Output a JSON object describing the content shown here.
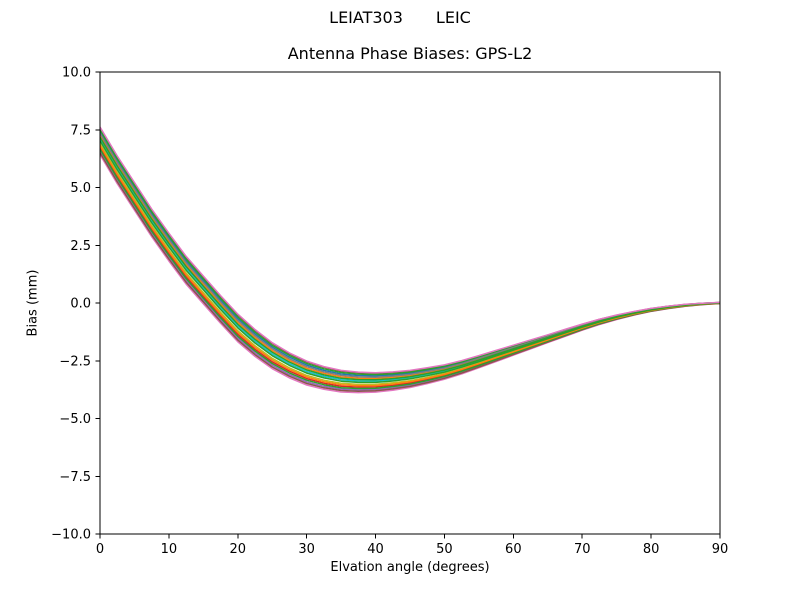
{
  "figure": {
    "suptitle": {
      "antenna": "LEIAT303",
      "station": "LEIC"
    },
    "axes_title": "Antenna Phase Biases: GPS-L2"
  },
  "axes": {
    "xlabel": "Elvation angle (degrees)",
    "ylabel": "Bias (mm)",
    "xlim": [
      0,
      90
    ],
    "ylim": [
      -10,
      10
    ],
    "x_ticks": {
      "values": [
        0,
        10,
        20,
        30,
        40,
        50,
        60,
        70,
        80,
        90
      ],
      "labels": [
        "0",
        "10",
        "20",
        "30",
        "40",
        "50",
        "60",
        "70",
        "80",
        "90"
      ]
    },
    "y_ticks": {
      "values": [
        10,
        7.5,
        5,
        2.5,
        0,
        -2.5,
        -5,
        -7.5,
        -10
      ],
      "labels": [
        "10.0",
        "7.5",
        "5.0",
        "2.5",
        "0.0",
        "−2.5",
        "−5.0",
        "−7.5",
        "−10.0"
      ]
    },
    "spine_color": "#000000",
    "background": "#ffffff"
  },
  "chart_data": {
    "type": "line",
    "title": "Antenna Phase Biases: GPS-L2",
    "suptitle": "LEIAT303        LEIC",
    "xlabel": "Elvation angle (degrees)",
    "ylabel": "Bias (mm)",
    "xlim": [
      0,
      90
    ],
    "ylim": [
      -10,
      10
    ],
    "grid": false,
    "legend": "none",
    "description": "Bundle of closely spaced phase-bias curves (one per satellite), start ~6.4-7.6 mm at 0 deg, cross zero near 17 deg, minimum ~-3.0 to -3.9 mm near 35-40 deg, converge to 0.0 mm at 90 deg",
    "x": [
      0,
      2.5,
      5,
      7.5,
      10,
      12.5,
      15,
      17.5,
      20,
      22.5,
      25,
      27.5,
      30,
      32.5,
      35,
      37.5,
      40,
      42.5,
      45,
      47.5,
      50,
      52.5,
      55,
      57.5,
      60,
      62.5,
      65,
      67.5,
      70,
      72.5,
      75,
      77.5,
      80,
      82.5,
      85,
      87.5,
      90
    ],
    "band_center": [
      7.0,
      5.75,
      4.6,
      3.45,
      2.4,
      1.4,
      0.55,
      -0.3,
      -1.1,
      -1.75,
      -2.3,
      -2.72,
      -3.05,
      -3.26,
      -3.4,
      -3.45,
      -3.45,
      -3.39,
      -3.3,
      -3.16,
      -3.0,
      -2.79,
      -2.55,
      -2.3,
      -2.05,
      -1.8,
      -1.55,
      -1.3,
      -1.05,
      -0.82,
      -0.62,
      -0.45,
      -0.3,
      -0.19,
      -0.1,
      -0.04,
      0.0
    ],
    "band_spread_weight": [
      1,
      1,
      1,
      1,
      1,
      1,
      1,
      1,
      1,
      0.97,
      0.94,
      0.9,
      0.86,
      0.82,
      0.78,
      0.74,
      0.7,
      0.66,
      0.62,
      0.57,
      0.52,
      0.48,
      0.44,
      0.4,
      0.36,
      0.32,
      0.28,
      0.25,
      0.22,
      0.19,
      0.16,
      0.13,
      0.11,
      0.09,
      0.07,
      0.05,
      0.04
    ],
    "series_rule": "value(j) = band_center[j] + offset * band_spread_weight[j]",
    "line_width": 1.5,
    "series": [
      {
        "offset": 0.58,
        "color": "#8c564b"
      },
      {
        "offset": -0.58,
        "color": "#e377c2"
      },
      {
        "offset": 0.42,
        "color": "#1f77b4"
      },
      {
        "offset": -0.42,
        "color": "#9467bd"
      },
      {
        "offset": 0.26,
        "color": "#ff7f0e"
      },
      {
        "offset": -0.26,
        "color": "#d62728"
      },
      {
        "offset": 0.1,
        "color": "#17becf"
      },
      {
        "offset": -0.1,
        "color": "#bcbd22"
      },
      {
        "offset": 0.5,
        "color": "#2ca02c"
      },
      {
        "offset": -0.5,
        "color": "#8c564b"
      },
      {
        "offset": 0.34,
        "color": "#7f7f7f"
      },
      {
        "offset": -0.34,
        "color": "#2ca02c"
      },
      {
        "offset": 0.18,
        "color": "#2ca02c"
      },
      {
        "offset": -0.18,
        "color": "#ff7f0e"
      },
      {
        "offset": 0.02,
        "color": "#2ca02c"
      },
      {
        "offset": 0.62,
        "color": "#e377c2"
      }
    ]
  }
}
